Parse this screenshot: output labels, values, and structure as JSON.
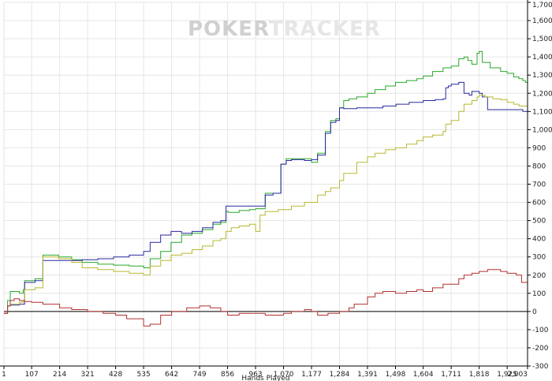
{
  "watermark": {
    "part1": "POKER",
    "part2": "TRACKER",
    "color1": "#d0d0d0",
    "color2": "#e6e6e6"
  },
  "chart_data": {
    "type": "line",
    "xlabel": "Hands Played",
    "ylabel": "",
    "xlim": [
      1,
      2003
    ],
    "ylim": [
      -300,
      1700
    ],
    "x_ticks": [
      "1",
      "107",
      "214",
      "321",
      "428",
      "535",
      "642",
      "749",
      "856",
      "963",
      "1,070",
      "1,177",
      "1,284",
      "1,391",
      "1,498",
      "1,604",
      "1,711",
      "1,818",
      "1,925",
      "2,003"
    ],
    "x_tick_values": [
      1,
      107,
      214,
      321,
      428,
      535,
      642,
      749,
      856,
      963,
      1070,
      1177,
      1284,
      1391,
      1498,
      1604,
      1711,
      1818,
      1925,
      2003
    ],
    "y_ticks": [
      "-300",
      "-200",
      "-100",
      "0",
      "100",
      "200",
      "300",
      "400",
      "500",
      "600",
      "700",
      "800",
      "900",
      "1,000",
      "1,100",
      "1,200",
      "1,300",
      "1,400",
      "1,500",
      "1,600",
      "1,700"
    ],
    "y_tick_values": [
      -300,
      -200,
      -100,
      0,
      100,
      200,
      300,
      400,
      500,
      600,
      700,
      800,
      900,
      1000,
      1100,
      1200,
      1300,
      1400,
      1500,
      1600,
      1700
    ],
    "grid": true,
    "legend": "none",
    "series": [
      {
        "color": "#28a828",
        "x": [
          1,
          15,
          25,
          60,
          75,
          80,
          120,
          150,
          210,
          260,
          300,
          360,
          420,
          480,
          535,
          560,
          600,
          640,
          680,
          720,
          760,
          800,
          830,
          850,
          860,
          900,
          940,
          963,
          1000,
          1030,
          1060,
          1080,
          1100,
          1150,
          1177,
          1200,
          1230,
          1250,
          1270,
          1284,
          1300,
          1320,
          1350,
          1391,
          1420,
          1460,
          1498,
          1540,
          1580,
          1604,
          1640,
          1680,
          1711,
          1740,
          1760,
          1775,
          1790,
          1810,
          1818,
          1830,
          1860,
          1900,
          1925,
          1950,
          1970,
          1985,
          1995,
          2003
        ],
        "y": [
          -10,
          60,
          110,
          100,
          120,
          170,
          180,
          310,
          300,
          285,
          270,
          260,
          255,
          250,
          240,
          290,
          330,
          380,
          420,
          430,
          450,
          480,
          490,
          550,
          545,
          555,
          560,
          565,
          650,
          650,
          810,
          840,
          840,
          840,
          820,
          870,
          990,
          1050,
          1060,
          1120,
          1160,
          1170,
          1180,
          1200,
          1220,
          1240,
          1260,
          1270,
          1280,
          1295,
          1320,
          1340,
          1350,
          1390,
          1400,
          1380,
          1360,
          1420,
          1430,
          1370,
          1340,
          1320,
          1310,
          1290,
          1280,
          1270,
          1260,
          1290
        ]
      },
      {
        "color": "#2828a0",
        "x": [
          1,
          15,
          25,
          60,
          75,
          80,
          120,
          150,
          210,
          260,
          300,
          360,
          420,
          480,
          535,
          560,
          600,
          640,
          680,
          720,
          760,
          800,
          830,
          850,
          900,
          963,
          1000,
          1030,
          1060,
          1080,
          1100,
          1150,
          1177,
          1200,
          1230,
          1250,
          1270,
          1284,
          1300,
          1350,
          1391,
          1450,
          1500,
          1550,
          1604,
          1650,
          1680,
          1690,
          1700,
          1711,
          1740,
          1760,
          1780,
          1790,
          1818,
          1830,
          1850,
          1900,
          1950,
          1985,
          2003
        ],
        "y": [
          -10,
          30,
          35,
          40,
          40,
          160,
          170,
          280,
          280,
          280,
          285,
          290,
          300,
          310,
          330,
          380,
          420,
          440,
          430,
          440,
          460,
          490,
          500,
          580,
          580,
          580,
          640,
          650,
          810,
          830,
          835,
          830,
          835,
          860,
          980,
          1040,
          1050,
          1120,
          1115,
          1120,
          1120,
          1130,
          1140,
          1150,
          1160,
          1165,
          1170,
          1230,
          1240,
          1250,
          1260,
          1200,
          1190,
          1210,
          1200,
          1180,
          1110,
          1110,
          1110,
          1100,
          1140
        ]
      },
      {
        "color": "#b8b830",
        "x": [
          1,
          15,
          25,
          60,
          75,
          80,
          120,
          150,
          210,
          260,
          300,
          360,
          420,
          480,
          535,
          560,
          600,
          640,
          680,
          720,
          760,
          800,
          830,
          850,
          870,
          900,
          940,
          963,
          980,
          1000,
          1050,
          1100,
          1150,
          1200,
          1230,
          1250,
          1284,
          1300,
          1350,
          1391,
          1420,
          1460,
          1498,
          1540,
          1580,
          1604,
          1640,
          1680,
          1690,
          1711,
          1740,
          1760,
          1790,
          1810,
          1818,
          1840,
          1870,
          1900,
          1925,
          1950,
          1970,
          2003
        ],
        "y": [
          -10,
          30,
          40,
          50,
          60,
          120,
          130,
          300,
          290,
          270,
          240,
          230,
          220,
          210,
          200,
          250,
          280,
          310,
          320,
          340,
          360,
          390,
          400,
          440,
          460,
          470,
          480,
          440,
          530,
          550,
          560,
          580,
          600,
          640,
          660,
          680,
          720,
          760,
          820,
          850,
          870,
          890,
          900,
          920,
          940,
          960,
          970,
          990,
          1030,
          1050,
          1100,
          1140,
          1160,
          1180,
          1190,
          1180,
          1170,
          1165,
          1150,
          1140,
          1130,
          1150
        ]
      },
      {
        "color": "#b03030",
        "x": [
          1,
          15,
          25,
          40,
          60,
          80,
          107,
          150,
          214,
          260,
          321,
          380,
          428,
          470,
          535,
          560,
          600,
          642,
          700,
          749,
          790,
          830,
          856,
          900,
          963,
          1000,
          1030,
          1070,
          1100,
          1150,
          1177,
          1200,
          1240,
          1284,
          1320,
          1340,
          1391,
          1420,
          1450,
          1498,
          1540,
          1580,
          1604,
          1640,
          1680,
          1711,
          1740,
          1760,
          1790,
          1818,
          1850,
          1880,
          1900,
          1925,
          1940,
          1960,
          1980,
          2003
        ],
        "y": [
          -10,
          30,
          60,
          70,
          60,
          55,
          50,
          40,
          20,
          10,
          0,
          -10,
          -20,
          -40,
          -80,
          -70,
          -20,
          0,
          20,
          30,
          20,
          0,
          -20,
          -10,
          -10,
          -20,
          -20,
          -10,
          0,
          10,
          0,
          -20,
          -10,
          0,
          20,
          40,
          80,
          100,
          110,
          100,
          110,
          120,
          110,
          130,
          150,
          150,
          180,
          200,
          210,
          220,
          230,
          230,
          220,
          210,
          210,
          200,
          160,
          140
        ]
      }
    ]
  }
}
